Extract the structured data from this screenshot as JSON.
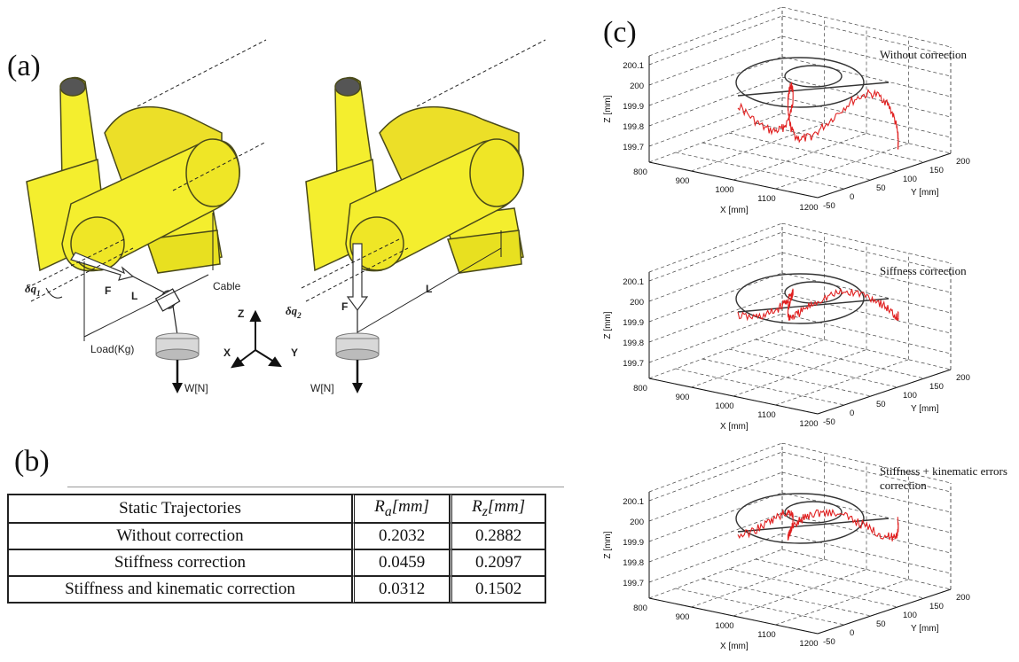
{
  "panels": {
    "a": "(a)",
    "b": "(b)",
    "c": "(c)"
  },
  "figure_a": {
    "labels": {
      "dq1": "δq",
      "dq1_sub": "1",
      "dq2": "δq",
      "dq2_sub": "2",
      "F_left": "F",
      "F_right": "F",
      "L_left": "L",
      "L_right": "L",
      "cable": "Cable",
      "load": "Load(Kg)",
      "w_left": "W[N]",
      "w_right": "W[N]",
      "axis_z": "Z",
      "axis_x": "X",
      "axis_y": "Y"
    },
    "colors": {
      "robot": "#f4ee2e",
      "robot_edge": "#4a4a1a"
    }
  },
  "table_b": {
    "headers": [
      "Static Trajectories",
      "R_a[mm]",
      "R_z[mm]"
    ],
    "header_main": {
      "ra": "R",
      "ra_sub": "a",
      "ra_unit": "[mm]",
      "rz": "R",
      "rz_sub": "z",
      "rz_unit": "[mm]"
    },
    "rows": [
      {
        "label": "Without correction",
        "ra": "0.2032",
        "rz": "0.2882"
      },
      {
        "label": "Stiffness correction",
        "ra": "0.0459",
        "rz": "0.2097"
      },
      {
        "label": "Stiffness and kinematic correction",
        "ra": "0.0312",
        "rz": "0.1502"
      }
    ]
  },
  "chart_data": [
    {
      "type": "line",
      "title": "Without correction",
      "xlabel": "X [mm]",
      "ylabel": "Y [mm]",
      "zlabel": "Z [mm]",
      "z_ticks": [
        "200.1",
        "200",
        "199.9",
        "199.8",
        "199.7"
      ],
      "x_ticks": [
        "800",
        "900",
        "1000",
        "1100",
        "1200"
      ],
      "y_ticks": [
        "-50",
        "0",
        "50",
        "100",
        "150",
        "200"
      ],
      "series": [
        {
          "color": "#e02020"
        },
        {
          "color": "#333333"
        }
      ]
    },
    {
      "type": "line",
      "title": "Siffness correction",
      "xlabel": "X [mm]",
      "ylabel": "Y [mm]",
      "zlabel": "Z [mm]",
      "z_ticks": [
        "200.1",
        "200",
        "199.9",
        "199.8",
        "199.7"
      ],
      "x_ticks": [
        "800",
        "900",
        "1000",
        "1100",
        "1200"
      ],
      "y_ticks": [
        "-50",
        "0",
        "50",
        "100",
        "150",
        "200"
      ],
      "series": [
        {
          "color": "#e02020"
        },
        {
          "color": "#333333"
        }
      ]
    },
    {
      "type": "line",
      "title": "Stiffness + kinematic errors",
      "title2": "correction",
      "xlabel": "X [mm]",
      "ylabel": "Y [mm]",
      "zlabel": "Z [mm]",
      "z_ticks": [
        "200.1",
        "200",
        "199.9",
        "199.8",
        "199.7"
      ],
      "x_ticks": [
        "800",
        "900",
        "1000",
        "1100",
        "1200"
      ],
      "y_ticks": [
        "-50",
        "0",
        "50",
        "100",
        "150",
        "200"
      ],
      "series": [
        {
          "color": "#e02020"
        },
        {
          "color": "#333333"
        }
      ]
    }
  ]
}
